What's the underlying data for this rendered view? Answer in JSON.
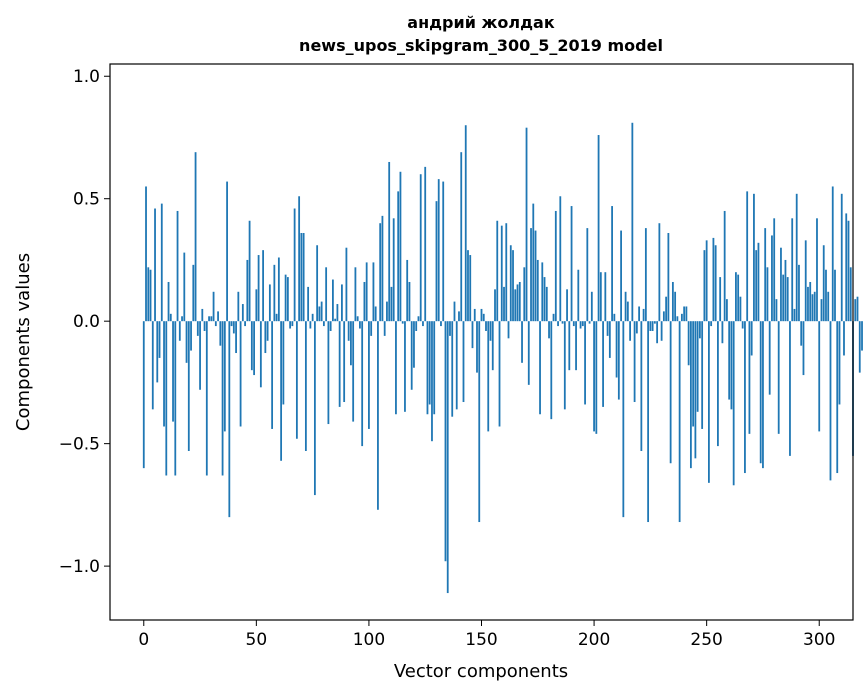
{
  "chart_data": {
    "type": "bar",
    "title_line1": "андрий жолдак",
    "title_line2": "news_upos_skipgram_300_5_2019 model",
    "xlabel": "Vector components",
    "ylabel": "Components values",
    "xlim": [
      -15,
      315
    ],
    "ylim": [
      -1.22,
      1.05
    ],
    "xticks": [
      0,
      50,
      100,
      150,
      200,
      250,
      300
    ],
    "xtick_labels": [
      "0",
      "50",
      "100",
      "150",
      "200",
      "250",
      "300"
    ],
    "yticks": [
      -1.0,
      -0.5,
      0.0,
      0.5,
      1.0
    ],
    "ytick_labels": [
      "−1.0",
      "−0.5",
      "0.0",
      "0.5",
      "1.0"
    ],
    "bar_color": "#1f77b4",
    "values": [
      -0.6,
      0.55,
      0.22,
      0.21,
      -0.36,
      0.46,
      -0.25,
      -0.15,
      0.48,
      -0.43,
      -0.63,
      0.16,
      0.03,
      -0.41,
      -0.63,
      0.45,
      -0.08,
      0.02,
      0.28,
      -0.17,
      -0.53,
      -0.12,
      0.23,
      0.69,
      -0.06,
      -0.28,
      0.05,
      -0.04,
      -0.63,
      0.02,
      0.02,
      0.12,
      -0.02,
      0.04,
      -0.1,
      -0.63,
      -0.45,
      0.57,
      -0.8,
      -0.02,
      -0.05,
      -0.13,
      0.12,
      -0.43,
      0.07,
      -0.02,
      0.25,
      0.41,
      -0.2,
      -0.22,
      0.13,
      0.27,
      -0.27,
      0.29,
      -0.13,
      -0.08,
      0.15,
      -0.44,
      0.23,
      0.03,
      0.26,
      -0.57,
      -0.34,
      0.19,
      0.18,
      -0.03,
      -0.02,
      0.46,
      -0.48,
      0.51,
      0.36,
      0.36,
      -0.53,
      0.14,
      -0.03,
      0.03,
      -0.71,
      0.31,
      0.06,
      0.08,
      -0.02,
      0.22,
      -0.42,
      -0.04,
      0.17,
      0.01,
      0.07,
      -0.35,
      0.15,
      -0.33,
      0.3,
      -0.08,
      -0.18,
      -0.41,
      0.22,
      0.02,
      -0.03,
      -0.51,
      0.16,
      0.24,
      -0.44,
      -0.06,
      0.24,
      0.06,
      -0.77,
      0.4,
      0.43,
      -0.06,
      0.08,
      0.65,
      0.14,
      0.42,
      -0.38,
      0.53,
      0.61,
      -0.01,
      -0.37,
      0.25,
      0.16,
      -0.28,
      -0.19,
      -0.04,
      0.02,
      0.6,
      -0.02,
      0.63,
      -0.38,
      -0.34,
      -0.49,
      -0.38,
      0.49,
      0.58,
      -0.02,
      0.57,
      -0.98,
      -1.11,
      -0.06,
      -0.39,
      0.08,
      -0.36,
      0.04,
      0.69,
      -0.33,
      0.8,
      0.29,
      0.27,
      -0.11,
      0.05,
      -0.21,
      -0.82,
      0.05,
      0.03,
      -0.04,
      -0.45,
      -0.08,
      -0.2,
      0.13,
      0.41,
      -0.43,
      0.39,
      0.14,
      0.4,
      -0.07,
      0.31,
      0.29,
      0.13,
      0.15,
      0.16,
      -0.17,
      0.22,
      0.79,
      -0.26,
      0.38,
      0.48,
      0.37,
      0.25,
      -0.38,
      0.24,
      0.18,
      0.14,
      -0.07,
      -0.4,
      0.03,
      0.45,
      -0.02,
      0.51,
      -0.01,
      -0.36,
      0.13,
      -0.2,
      0.47,
      -0.02,
      -0.2,
      0.21,
      -0.03,
      -0.02,
      -0.34,
      0.38,
      -0.01,
      0.12,
      -0.45,
      -0.46,
      0.76,
      0.2,
      -0.35,
      0.2,
      -0.06,
      -0.15,
      0.47,
      0.03,
      -0.23,
      -0.32,
      0.37,
      -0.8,
      0.12,
      0.08,
      -0.08,
      0.81,
      -0.33,
      -0.05,
      0.06,
      -0.53,
      0.05,
      0.38,
      -0.82,
      -0.04,
      -0.04,
      -0.01,
      -0.09,
      0.4,
      -0.08,
      0.04,
      0.1,
      0.36,
      -0.58,
      0.16,
      0.12,
      0.02,
      -0.82,
      0.03,
      0.06,
      0.06,
      -0.18,
      -0.6,
      -0.43,
      -0.56,
      -0.37,
      -0.07,
      -0.44,
      0.29,
      0.33,
      -0.66,
      -0.02,
      0.34,
      0.31,
      -0.51,
      0.18,
      -0.09,
      0.45,
      0.09,
      -0.32,
      -0.36,
      -0.67,
      0.2,
      0.19,
      0.1,
      -0.03,
      -0.62,
      0.53,
      -0.46,
      -0.14,
      0.52,
      0.29,
      0.32,
      -0.58,
      -0.6,
      0.38,
      0.22,
      -0.3,
      0.35,
      0.42,
      0.09,
      -0.46,
      0.3,
      0.19,
      0.25,
      0.18,
      -0.55,
      0.42,
      0.05,
      0.52,
      0.23,
      -0.1,
      -0.22,
      0.33,
      0.14,
      0.16,
      0.11,
      0.12,
      0.42,
      -0.45,
      0.09,
      0.31,
      0.21,
      0.12,
      -0.65,
      0.55,
      0.21,
      -0.62,
      -0.34,
      0.52,
      -0.14,
      0.44,
      0.41,
      0.22,
      -0.55,
      0.09,
      0.1,
      -0.21,
      -0.12
    ]
  }
}
